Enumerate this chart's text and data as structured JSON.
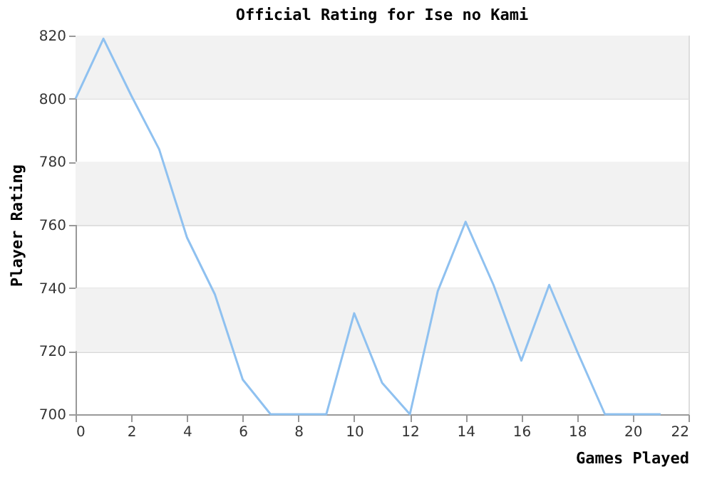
{
  "chart_data": {
    "type": "line",
    "title": "Official Rating for Ise no Kami",
    "xlabel": "Games Played",
    "ylabel": "Player Rating",
    "x": [
      0,
      1,
      2,
      3,
      4,
      5,
      6,
      7,
      8,
      9,
      10,
      11,
      12,
      13,
      14,
      15,
      16,
      17,
      18,
      19,
      20,
      21
    ],
    "series": [
      {
        "color": "#8fc1f0",
        "values": [
          800,
          819,
          801,
          784,
          756,
          738,
          711,
          700,
          700,
          700,
          732,
          710,
          700,
          739,
          761,
          741,
          717,
          741,
          720,
          700,
          700,
          700
        ]
      }
    ],
    "xlim": [
      0,
      22
    ],
    "xticks": [
      0,
      2,
      4,
      6,
      8,
      10,
      12,
      14,
      16,
      18,
      20,
      22
    ],
    "ylim": [
      700,
      820
    ],
    "yticks": [
      700,
      720,
      740,
      760,
      780,
      800,
      820
    ],
    "bands": [
      {
        "axis": "y",
        "from": 720,
        "to": 740,
        "color": "#f2f2f2"
      },
      {
        "axis": "y",
        "from": 760,
        "to": 780,
        "color": "#f2f2f2"
      },
      {
        "axis": "y",
        "from": 800,
        "to": 820,
        "color": "#f2f2f2"
      }
    ],
    "grid": "y",
    "marker": "none",
    "line_style": "solid"
  }
}
